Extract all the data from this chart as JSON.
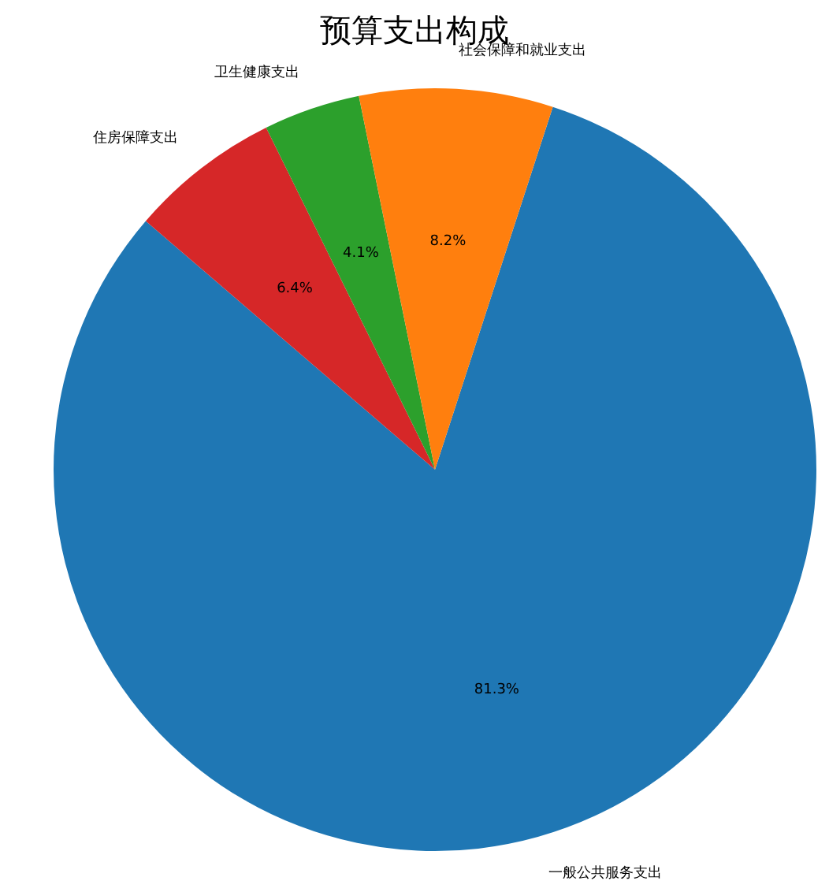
{
  "chart_data": {
    "type": "pie",
    "title": "预算支出构成",
    "categories": [
      "一般公共服务支出",
      "住房保障支出",
      "卫生健康支出",
      "社会保障和就业支出"
    ],
    "values": [
      81.3,
      6.4,
      4.1,
      8.2
    ],
    "colors": [
      "#1f77b4",
      "#d62728",
      "#2ca02c",
      "#ff7f0e"
    ],
    "value_labels": [
      "81.3%",
      "6.4%",
      "4.1%",
      "8.2%"
    ]
  }
}
